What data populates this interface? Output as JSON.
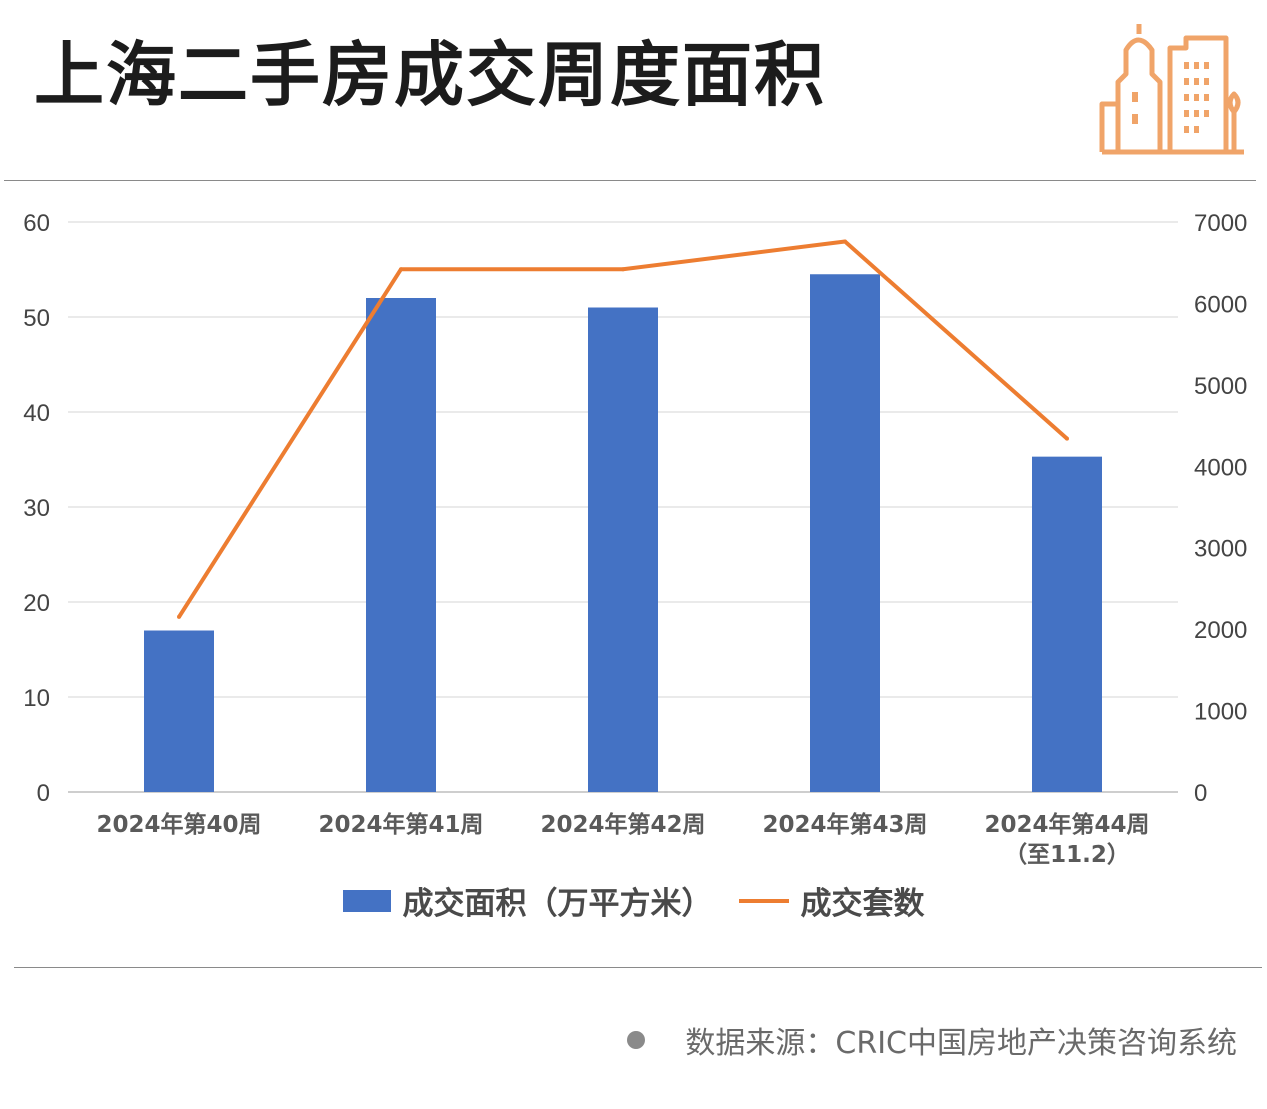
{
  "header": {
    "title": "上海二手房成交周度面积"
  },
  "icons": {
    "logo": "city-buildings-icon"
  },
  "colors": {
    "bar": "#4472c4",
    "line": "#ed7d31",
    "logo": "#f0a469"
  },
  "chart_data": {
    "type": "bar+line",
    "categories": [
      [
        "2024年第40周"
      ],
      [
        "2024年第41周"
      ],
      [
        "2024年第42周"
      ],
      [
        "2024年第43周"
      ],
      [
        "2024年第44周",
        "（至11.2）"
      ]
    ],
    "series": [
      {
        "name": "成交面积（万平方米）",
        "type": "bar",
        "axis": "left",
        "values": [
          17,
          52,
          51,
          54.5,
          35.3
        ]
      },
      {
        "name": "成交套数",
        "type": "line",
        "axis": "right",
        "values": [
          2150,
          6420,
          6420,
          6760,
          4340
        ]
      }
    ],
    "y_left": {
      "min": 0,
      "max": 60,
      "ticks": [
        "0",
        "10",
        "20",
        "30",
        "40",
        "50",
        "60"
      ]
    },
    "y_right": {
      "min": 0,
      "max": 7000,
      "ticks": [
        "0",
        "1000",
        "2000",
        "3000",
        "4000",
        "5000",
        "6000",
        "7000"
      ]
    },
    "grid": true,
    "legend_position": "bottom"
  },
  "footer": {
    "source": "数据来源：CRIC中国房地产决策咨询系统"
  }
}
